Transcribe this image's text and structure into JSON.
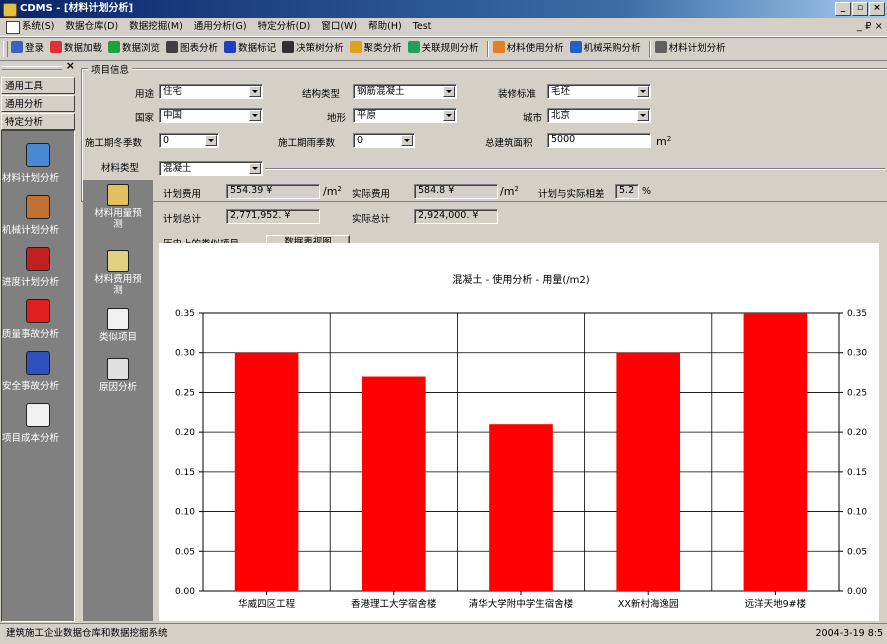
{
  "window": {
    "title": "CDMS - [材料计划分析]"
  },
  "menu": [
    "系统(S)",
    "数据仓库(D)",
    "数据挖掘(M)",
    "通用分析(G)",
    "特定分析(D)",
    "窗口(W)",
    "帮助(H)",
    "Test"
  ],
  "mdi_controls": "_ ₽ ×",
  "toolbar": [
    {
      "label": "登录",
      "icon": "login-icon",
      "color": "#4060c0"
    },
    {
      "label": "数据加载",
      "icon": "data-load-icon",
      "color": "#e03030"
    },
    {
      "label": "数据浏览",
      "icon": "data-browse-icon",
      "color": "#20a040"
    },
    {
      "label": "图表分析",
      "icon": "chart-icon",
      "color": "#404040"
    },
    {
      "label": "数据标记",
      "icon": "marker-icon",
      "color": "#2040c0"
    },
    {
      "label": "决策树分析",
      "icon": "tree-icon",
      "color": "#303030"
    },
    {
      "label": "聚类分析",
      "icon": "cluster-icon",
      "color": "#e0a020"
    },
    {
      "label": "关联规则分析",
      "icon": "rule-icon",
      "color": "#20a060"
    },
    {
      "label": "材料使用分析",
      "icon": "material-icon",
      "color": "#e08020"
    },
    {
      "label": "机械采购分析",
      "icon": "machine-icon",
      "color": "#2060c0"
    },
    {
      "label": "材料计划分析",
      "icon": "plan-icon",
      "color": "#606060"
    }
  ],
  "leftpanel": {
    "buttons": [
      "通用工具",
      "通用分析",
      "特定分析"
    ],
    "items": [
      {
        "label": "材料计划分析",
        "icon": "material-plan-icon",
        "color": "#4a8ad4"
      },
      {
        "label": "机械计划分析",
        "icon": "machine-plan-icon",
        "color": "#c07030"
      },
      {
        "label": "进度计划分析",
        "icon": "schedule-plan-icon",
        "color": "#c02020"
      },
      {
        "label": "质量事故分析",
        "icon": "quality-accident-icon",
        "color": "#e02020"
      },
      {
        "label": "安全事故分析",
        "icon": "safety-accident-icon",
        "color": "#3050c0"
      },
      {
        "label": "项目成本分析",
        "icon": "project-cost-icon",
        "color": "#f0f0f0"
      }
    ]
  },
  "project_info": {
    "title": "项目信息",
    "usage_label": "用途",
    "usage": "住宅",
    "structure_label": "结构类型",
    "structure": "钢筋混凝土",
    "decoration_label": "装修标准",
    "decoration": "毛坯",
    "country_label": "国家",
    "country": "中国",
    "terrain_label": "地形",
    "terrain": "平原",
    "city_label": "城市",
    "city": "北京",
    "winter_label": "施工期冬季数",
    "winter": "0",
    "rain_label": "施工期雨季数",
    "rain": "0",
    "area_label": "总建筑面积",
    "area": "5000",
    "area_unit": "m",
    "area_sup": "2"
  },
  "material": {
    "type_label": "材料类型",
    "type": "混凝土",
    "plan_cost_label": "计划费用",
    "plan_cost": "554.39 ¥",
    "per_m2": "/m",
    "sup2": "2",
    "actual_cost_label": "实际费用",
    "actual_cost": "584.8 ¥",
    "diff_label": "计划与实际相差",
    "diff": "5.2",
    "diff_unit": "%",
    "plan_total_label": "计划总计",
    "plan_total": "2,771,952. ¥",
    "actual_total_label": "实际总计",
    "actual_total": "2,924,000. ¥",
    "history_label": "历史上的类似项目",
    "chart_view_btn": "数据表视图"
  },
  "subnav": [
    {
      "label": "材料用量预测",
      "icon": "usage-forecast-icon",
      "color": "#e0c060"
    },
    {
      "label": "材料费用预测",
      "icon": "cost-forecast-icon",
      "color": "#e0d080"
    },
    {
      "label": "类似项目",
      "icon": "similar-project-icon",
      "color": "#f0f0f0"
    },
    {
      "label": "原因分析",
      "icon": "cause-analysis-icon",
      "color": "#e0e0e0"
    }
  ],
  "chart_data": {
    "type": "bar",
    "title": "混凝土 - 使用分析 - 用量(/m2)",
    "categories": [
      "华威四区工程",
      "香港理工大学宿舍楼",
      "清华大学附中学生宿舍楼",
      "XX新村海逸园",
      "远洋天地9#楼"
    ],
    "values": [
      0.3,
      0.27,
      0.21,
      0.3,
      0.35
    ],
    "ylim": [
      0,
      0.35
    ],
    "yticks": [
      "0.00",
      "0.05",
      "0.10",
      "0.15",
      "0.20",
      "0.25",
      "0.30",
      "0.35"
    ],
    "bar_color": "#ff0000",
    "grid": true
  },
  "status": {
    "left": "建筑施工企业数据仓库和数据挖掘系统",
    "right": "2004-3-19  8:5"
  }
}
